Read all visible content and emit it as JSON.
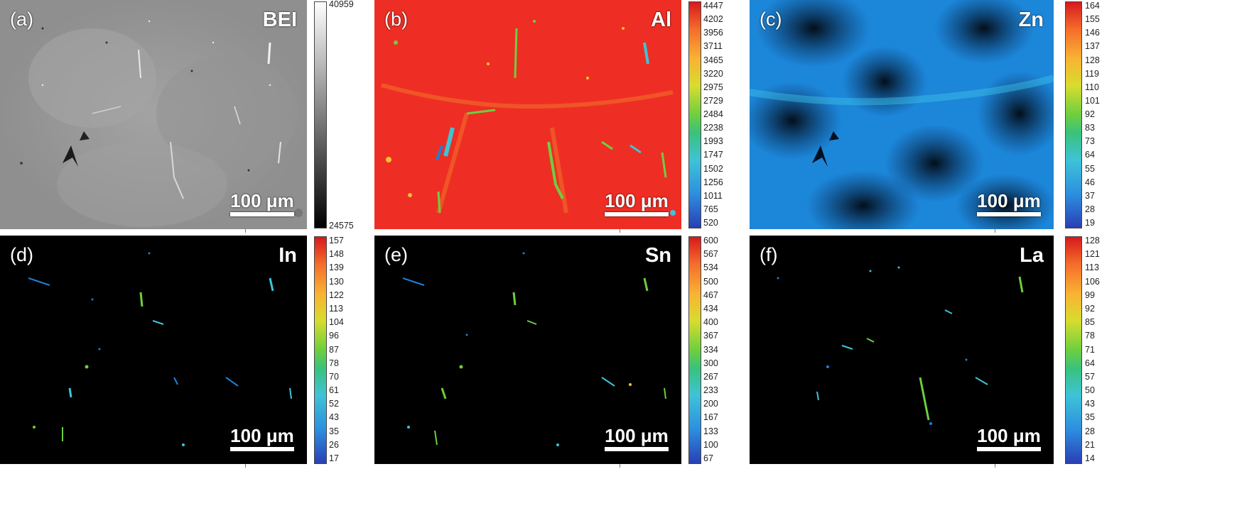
{
  "figure": {
    "scale_bar_label": "100 μm",
    "panels": [
      {
        "label": "(a)",
        "element": "BEI",
        "colormap": "gray",
        "colorbar_ticks": [
          "40959",
          "24575"
        ]
      },
      {
        "label": "(b)",
        "element": "Al",
        "colormap": "jet",
        "colorbar_ticks": [
          "4447",
          "4202",
          "3956",
          "3711",
          "3465",
          "3220",
          "2975",
          "2729",
          "2484",
          "2238",
          "1993",
          "1747",
          "1502",
          "1256",
          "1011",
          "765",
          "520"
        ]
      },
      {
        "label": "(c)",
        "element": "Zn",
        "colormap": "jet",
        "colorbar_ticks": [
          "164",
          "155",
          "146",
          "137",
          "128",
          "119",
          "110",
          "101",
          "92",
          "83",
          "73",
          "64",
          "55",
          "46",
          "37",
          "28",
          "19"
        ]
      },
      {
        "label": "(d)",
        "element": "In",
        "colormap": "jet",
        "colorbar_ticks": [
          "157",
          "148",
          "139",
          "130",
          "122",
          "113",
          "104",
          "96",
          "87",
          "78",
          "70",
          "61",
          "52",
          "43",
          "35",
          "26",
          "17"
        ]
      },
      {
        "label": "(e)",
        "element": "Sn",
        "colormap": "jet",
        "colorbar_ticks": [
          "600",
          "567",
          "534",
          "500",
          "467",
          "434",
          "400",
          "367",
          "334",
          "300",
          "267",
          "233",
          "200",
          "167",
          "133",
          "100",
          "67"
        ]
      },
      {
        "label": "(f)",
        "element": "La",
        "colormap": "jet",
        "colorbar_ticks": [
          "128",
          "121",
          "113",
          "106",
          "99",
          "92",
          "85",
          "78",
          "71",
          "64",
          "57",
          "50",
          "43",
          "35",
          "28",
          "21",
          "14"
        ]
      }
    ],
    "colors": {
      "bei_background": "#9a9a9a",
      "al_background": "#ee2e24",
      "zn_background": "#1f7fd6",
      "trace_background": "#000000",
      "phase_green": "#6dcf3e",
      "phase_cyan": "#3fc3d6"
    }
  }
}
